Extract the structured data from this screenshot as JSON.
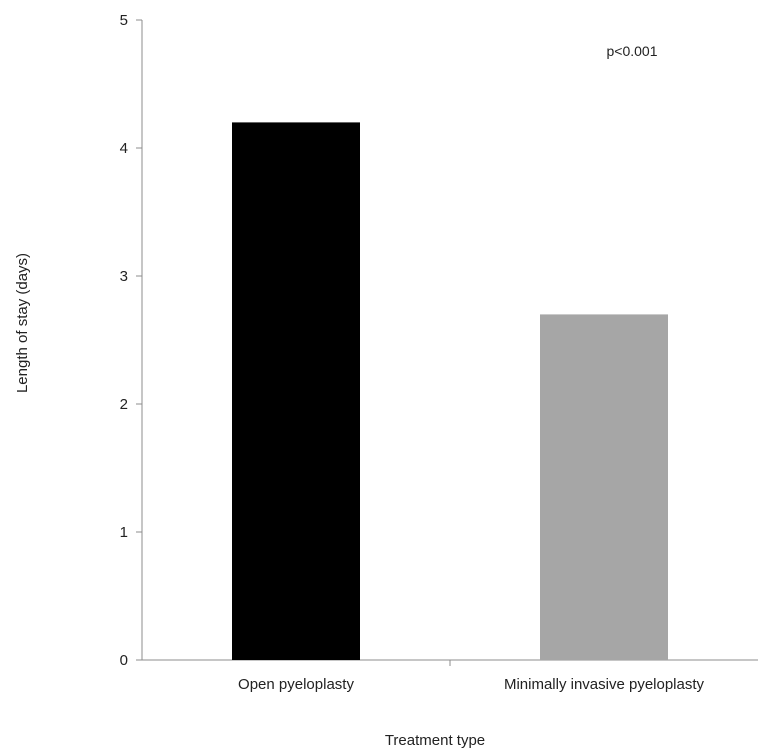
{
  "chart_data": {
    "type": "bar",
    "title": "",
    "xlabel": "Treatment type",
    "ylabel": "Length of stay (days)",
    "categories": [
      "Open pyeloplasty",
      "Minimally invasive pyeloplasty"
    ],
    "values": [
      4.2,
      2.7
    ],
    "bar_colors": [
      "#000000",
      "#a6a6a6"
    ],
    "ylim": [
      0,
      5
    ],
    "yticks": [
      "0",
      "1",
      "2",
      "3",
      "4",
      "5"
    ],
    "grid": false,
    "legend": "none",
    "annotations": [
      {
        "text": "p<0.001"
      }
    ]
  }
}
